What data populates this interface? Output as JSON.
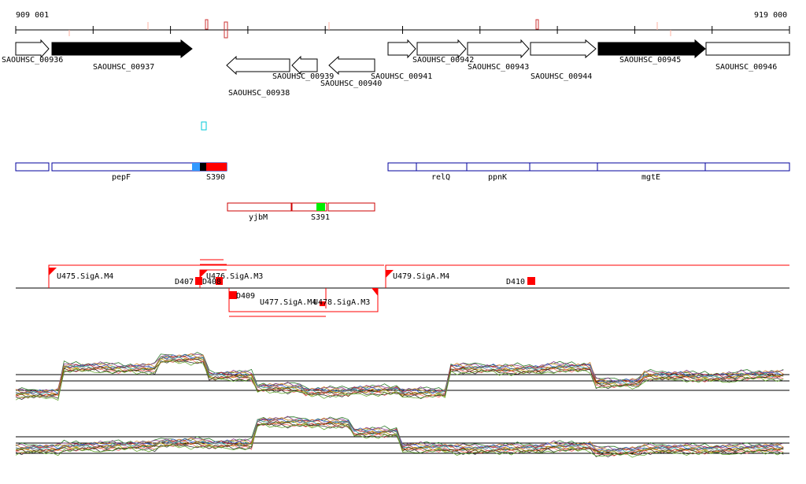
{
  "ruler": {
    "start_label": "909 001",
    "end_label": "919 000"
  },
  "genes": [
    {
      "label": "SAOUHSC_00936",
      "fill": "white",
      "strand": "+"
    },
    {
      "label": "SAOUHSC_00937",
      "fill": "black",
      "strand": "+"
    },
    {
      "label": "SAOUHSC_00938",
      "fill": "white",
      "strand": "-"
    },
    {
      "label": "SAOUHSC_00939",
      "fill": "white",
      "strand": "-"
    },
    {
      "label": "SAOUHSC_00940",
      "fill": "white",
      "strand": "-"
    },
    {
      "label": "SAOUHSC_00941",
      "fill": "white",
      "strand": "+"
    },
    {
      "label": "SAOUHSC_00942",
      "fill": "white",
      "strand": "+"
    },
    {
      "label": "SAOUHSC_00943",
      "fill": "white",
      "strand": "+"
    },
    {
      "label": "SAOUHSC_00944",
      "fill": "white",
      "strand": "+"
    },
    {
      "label": "SAOUHSC_00945",
      "fill": "black",
      "strand": "+"
    },
    {
      "label": "SAOUHSC_00946",
      "fill": "white",
      "strand": "+"
    }
  ],
  "annotations_blue": [
    {
      "label": ""
    },
    {
      "label": "pepF"
    },
    {
      "label": "relQ"
    },
    {
      "label": "ppnK"
    },
    {
      "label": ""
    },
    {
      "label": "mgtE"
    },
    {
      "label": ""
    }
  ],
  "annotations_red": [
    {
      "label": "yjbM"
    },
    {
      "label": ""
    },
    {
      "label": ""
    }
  ],
  "segments": [
    {
      "label": "S390",
      "color": "#ff0000"
    },
    {
      "label": "S391",
      "color": "#00ff00"
    }
  ],
  "transcription_units": [
    {
      "label": "U475.SigA.M4"
    },
    {
      "label": "U476.SigA.M3"
    },
    {
      "label": "U477.SigA.M4"
    },
    {
      "label": "U478.SigA.M3"
    },
    {
      "label": "U479.SigA.M4"
    }
  ],
  "downshifts": [
    {
      "label": "D407"
    },
    {
      "label": "D408"
    },
    {
      "label": "D409"
    },
    {
      "label": "D410"
    }
  ],
  "colors": {
    "gene_outline": "#000000",
    "blue_feature": "#00009c",
    "red_feature": "#cc0000",
    "tu_line": "#ff0000",
    "segment_cyan": "#00c8d8",
    "segment_blue": "#3399ff"
  },
  "expression_tracks": [
    {
      "name": "top-expression-track",
      "profile": [
        0.18,
        0.72,
        0.7,
        0.9,
        0.55,
        0.3,
        0.22,
        0.25,
        0.2,
        0.7,
        0.68,
        0.72,
        0.4,
        0.55,
        0.52,
        0.56
      ]
    },
    {
      "name": "bottom-expression-track",
      "profile": [
        0.35,
        0.4,
        0.42,
        0.48,
        0.45,
        0.92,
        0.9,
        0.7,
        0.38,
        0.35,
        0.36,
        0.4,
        0.3,
        0.35,
        0.34,
        0.36
      ]
    }
  ]
}
